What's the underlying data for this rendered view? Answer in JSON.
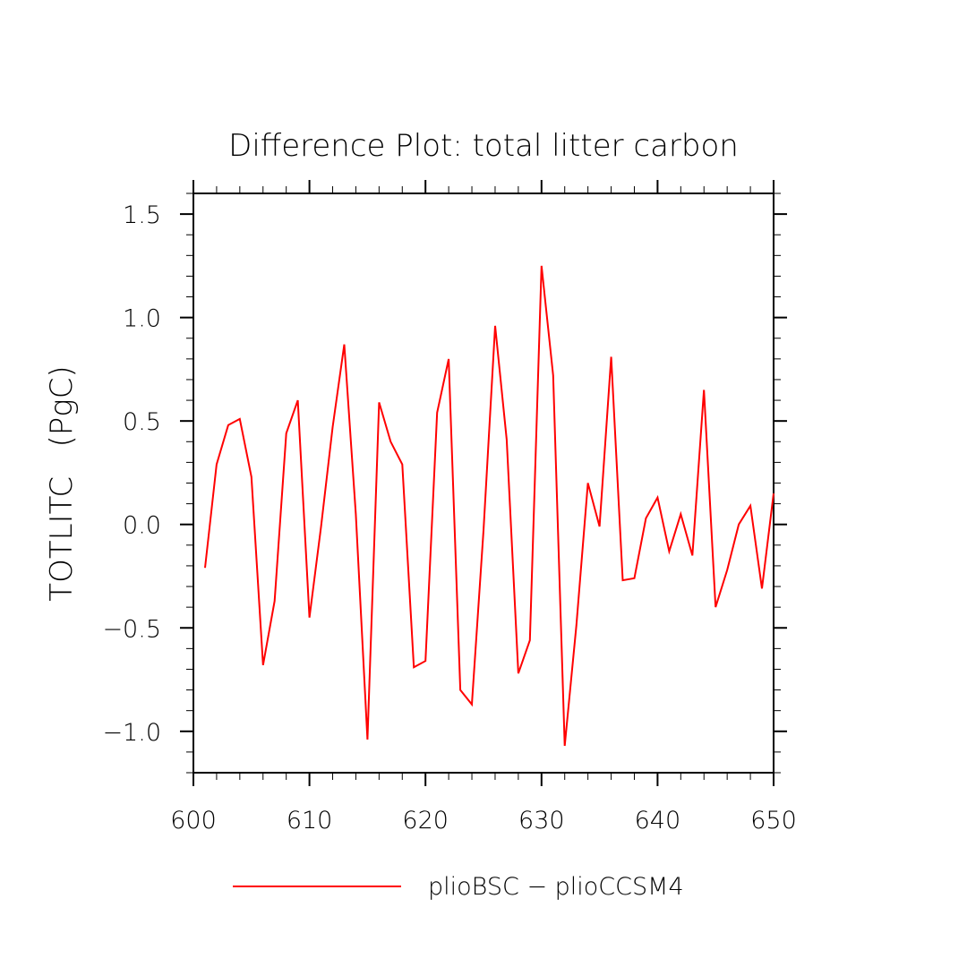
{
  "chart_data": {
    "type": "line",
    "title": "Difference Plot: total litter carbon",
    "xlabel": "",
    "ylabel": "TOTLITC   (PgC)",
    "xlim": [
      600,
      650
    ],
    "ylim": [
      -1.2,
      1.6
    ],
    "x_ticks": [
      600,
      610,
      620,
      630,
      640,
      650
    ],
    "x_tick_labels": [
      "600",
      "610",
      "620",
      "630",
      "640",
      "650"
    ],
    "y_ticks": [
      -1.0,
      -0.5,
      0.0,
      0.5,
      1.0,
      1.5
    ],
    "y_tick_labels": [
      "−1.0",
      "−0.5",
      "0.0",
      "0.5",
      "1.0",
      "1.5"
    ],
    "grid": false,
    "legend_position": "bottom",
    "series": [
      {
        "name": "plioBSC − plioCCSM4",
        "color": "#ff0000",
        "x": [
          601,
          602,
          603,
          604,
          605,
          606,
          607,
          608,
          609,
          610,
          611,
          612,
          613,
          614,
          615,
          616,
          617,
          618,
          619,
          620,
          621,
          622,
          623,
          624,
          625,
          626,
          627,
          628,
          629,
          630,
          631,
          632,
          633,
          634,
          635,
          636,
          637,
          638,
          639,
          640,
          641,
          642,
          643,
          644,
          645,
          646,
          647,
          648,
          649,
          650
        ],
        "y": [
          -0.21,
          0.29,
          0.48,
          0.51,
          0.23,
          -0.68,
          -0.37,
          0.44,
          0.6,
          -0.45,
          -0.01,
          0.47,
          0.87,
          0.05,
          -1.04,
          0.59,
          0.4,
          0.29,
          -0.69,
          -0.66,
          0.54,
          0.8,
          -0.8,
          -0.87,
          -0.03,
          0.96,
          0.41,
          -0.72,
          -0.56,
          1.25,
          0.72,
          -1.07,
          -0.49,
          0.2,
          -0.01,
          0.81,
          -0.27,
          -0.26,
          0.03,
          0.13,
          -0.13,
          0.05,
          -0.15,
          0.65,
          -0.4,
          -0.22,
          0.0,
          0.09,
          -0.31,
          0.15
        ]
      }
    ]
  }
}
